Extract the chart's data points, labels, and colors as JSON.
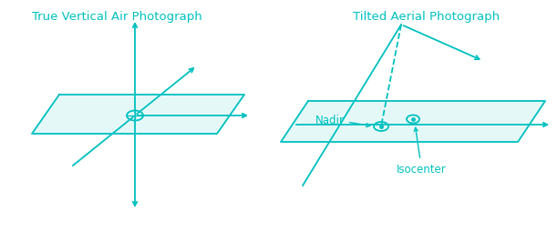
{
  "color": "#00C0C0",
  "bg_color": "#ffffff",
  "title_left": "True Vertical Air Photograph",
  "title_right": "Tilted Aerial Photograph",
  "label_nadir": "Nadir",
  "label_isocenter": "Isocenter",
  "title_fontsize": 9.5,
  "label_fontsize": 8.5,
  "fig_w": 6.12,
  "fig_h": 2.55,
  "dpi": 100
}
